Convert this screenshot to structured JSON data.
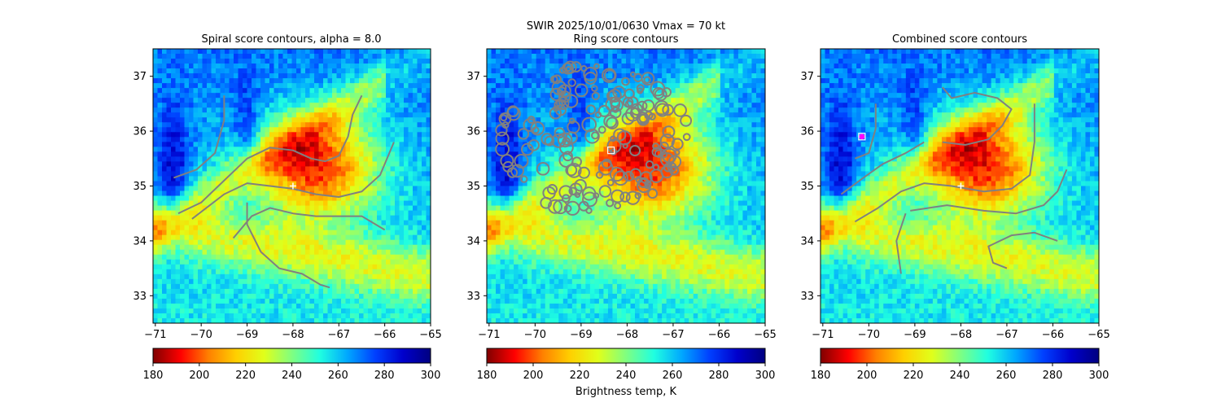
{
  "suptitle": "SWIR  2025/10/01/0630    Vmax = 70 kt",
  "colorbar_label": "Brightness temp, K",
  "colorbar_ticks": [
    180,
    200,
    220,
    240,
    260,
    280,
    300
  ],
  "colormap": [
    "#800000",
    "#ff0000",
    "#ff8000",
    "#ffd000",
    "#e0ff1a",
    "#80ff80",
    "#20ffe0",
    "#00a8ff",
    "#0040ff",
    "#0000cc",
    "#000080"
  ],
  "contour_color": "#808080",
  "marker_color": "#ffffff",
  "chart_data": [
    {
      "type": "heatmap",
      "title": "Spiral score contours, alpha =  8.0",
      "x_ticks": [
        -71,
        -70,
        -69,
        -68,
        -67,
        -66,
        -65
      ],
      "y_ticks": [
        33,
        34,
        35,
        36,
        37
      ],
      "xlim": [
        -71.05,
        -65.0
      ],
      "ylim": [
        32.5,
        37.5
      ],
      "colorbar_range": [
        180,
        300
      ],
      "center_marker": {
        "x": -68.0,
        "y": 35.0,
        "shape": "plus"
      },
      "contours": [
        [
          [
            -70.6,
            35.15
          ],
          [
            -70.1,
            35.3
          ],
          [
            -69.7,
            35.6
          ],
          [
            -69.5,
            36.2
          ],
          [
            -69.5,
            36.65
          ]
        ],
        [
          [
            -70.5,
            34.5
          ],
          [
            -70.0,
            34.7
          ],
          [
            -69.5,
            35.1
          ],
          [
            -69.0,
            35.5
          ],
          [
            -68.5,
            35.7
          ],
          [
            -68.0,
            35.65
          ],
          [
            -67.6,
            35.5
          ],
          [
            -67.3,
            35.45
          ],
          [
            -67.0,
            35.55
          ],
          [
            -66.8,
            35.9
          ],
          [
            -66.7,
            36.3
          ],
          [
            -66.5,
            36.65
          ]
        ],
        [
          [
            -70.2,
            34.4
          ],
          [
            -69.5,
            34.85
          ],
          [
            -69.0,
            35.05
          ],
          [
            -68.5,
            35.0
          ],
          [
            -68.0,
            34.95
          ],
          [
            -67.5,
            34.85
          ],
          [
            -67.0,
            34.8
          ],
          [
            -66.5,
            34.9
          ],
          [
            -66.1,
            35.2
          ],
          [
            -65.8,
            35.8
          ]
        ],
        [
          [
            -69.3,
            34.05
          ],
          [
            -68.9,
            34.45
          ],
          [
            -68.5,
            34.6
          ],
          [
            -68.0,
            34.5
          ],
          [
            -67.5,
            34.45
          ],
          [
            -67.0,
            34.45
          ],
          [
            -66.5,
            34.45
          ],
          [
            -66.0,
            34.2
          ]
        ],
        [
          [
            -69.0,
            34.7
          ],
          [
            -69.0,
            34.3
          ],
          [
            -68.7,
            33.8
          ],
          [
            -68.3,
            33.5
          ],
          [
            -67.8,
            33.4
          ],
          [
            -67.4,
            33.2
          ],
          [
            -67.2,
            33.15
          ]
        ]
      ]
    },
    {
      "type": "heatmap",
      "title": "Ring score contours",
      "x_ticks": [
        -71,
        -70,
        -69,
        -68,
        -67,
        -66,
        -65
      ],
      "y_ticks": [
        33,
        34,
        35,
        36,
        37
      ],
      "xlim": [
        -71.05,
        -65.0
      ],
      "ylim": [
        32.5,
        37.5
      ],
      "colorbar_range": [
        180,
        300
      ],
      "center_marker": {
        "x": -68.35,
        "y": 35.65,
        "shape": "square"
      },
      "ring_region": {
        "x_range": [
          -70.8,
          -66.7
        ],
        "y_range": [
          34.55,
          37.2
        ]
      },
      "contours": []
    },
    {
      "type": "heatmap",
      "title": "Combined score contours",
      "x_ticks": [
        -71,
        -70,
        -69,
        -68,
        -67,
        -66,
        -65
      ],
      "y_ticks": [
        33,
        34,
        35,
        36,
        37
      ],
      "xlim": [
        -71.05,
        -65.0
      ],
      "ylim": [
        32.5,
        37.5
      ],
      "colorbar_range": [
        180,
        300
      ],
      "center_marker": {
        "x": -68.0,
        "y": 35.0,
        "shape": "plus"
      },
      "extra_marker": {
        "x": -70.15,
        "y": 35.9,
        "shape": "square"
      },
      "contours": [
        [
          [
            -70.3,
            35.5
          ],
          [
            -70.0,
            35.6
          ],
          [
            -69.85,
            36.05
          ],
          [
            -69.85,
            36.5
          ]
        ],
        [
          [
            -68.4,
            36.8
          ],
          [
            -68.2,
            36.6
          ],
          [
            -67.7,
            36.7
          ],
          [
            -67.2,
            36.6
          ],
          [
            -66.9,
            36.4
          ],
          [
            -67.1,
            36.1
          ],
          [
            -67.4,
            35.85
          ],
          [
            -67.9,
            35.75
          ],
          [
            -68.4,
            35.8
          ]
        ],
        [
          [
            -70.6,
            34.85
          ],
          [
            -70.2,
            35.1
          ],
          [
            -69.7,
            35.4
          ],
          [
            -69.2,
            35.6
          ],
          [
            -68.8,
            35.8
          ]
        ],
        [
          [
            -70.3,
            34.35
          ],
          [
            -69.8,
            34.6
          ],
          [
            -69.3,
            34.9
          ],
          [
            -68.8,
            35.05
          ],
          [
            -68.2,
            35.0
          ],
          [
            -67.5,
            34.9
          ],
          [
            -66.9,
            34.95
          ],
          [
            -66.5,
            35.2
          ],
          [
            -66.4,
            35.8
          ],
          [
            -66.4,
            36.5
          ]
        ],
        [
          [
            -69.1,
            34.55
          ],
          [
            -68.3,
            34.65
          ],
          [
            -67.5,
            34.55
          ],
          [
            -66.8,
            34.5
          ],
          [
            -66.2,
            34.65
          ],
          [
            -65.9,
            34.9
          ],
          [
            -65.7,
            35.3
          ]
        ],
        [
          [
            -69.3,
            33.4
          ],
          [
            -69.4,
            34.0
          ],
          [
            -69.2,
            34.5
          ]
        ],
        [
          [
            -67.0,
            33.5
          ],
          [
            -67.3,
            33.6
          ],
          [
            -67.4,
            33.9
          ],
          [
            -66.9,
            34.1
          ],
          [
            -66.4,
            34.15
          ],
          [
            -65.9,
            34.0
          ]
        ]
      ]
    }
  ]
}
